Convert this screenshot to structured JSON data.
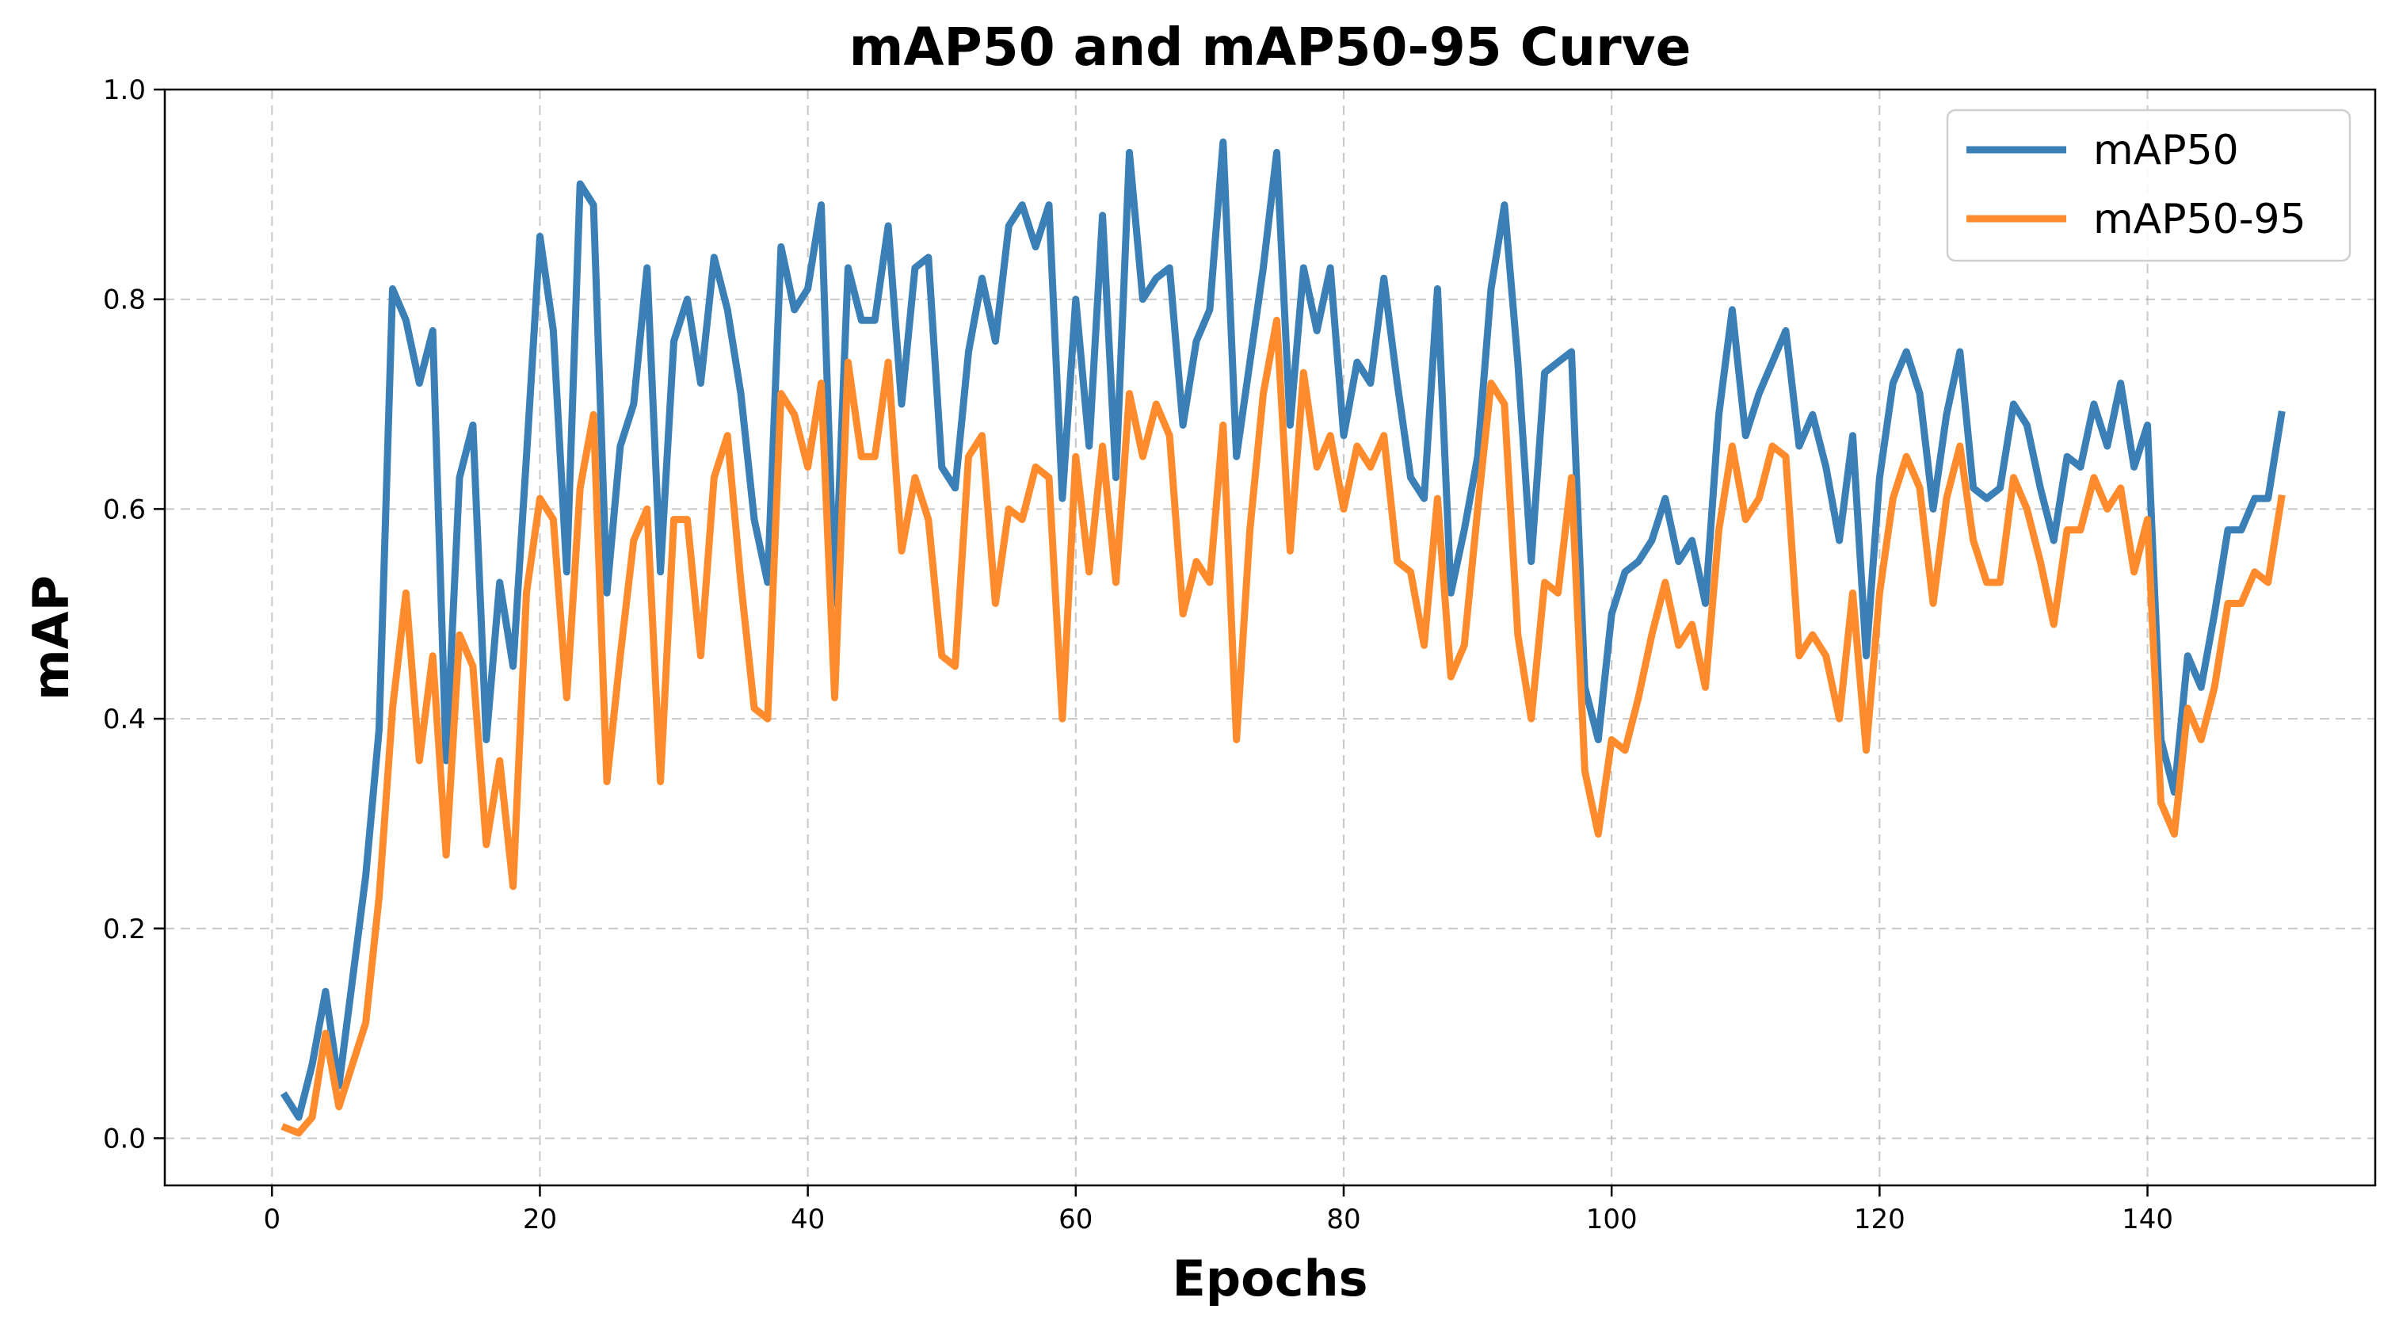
{
  "chart_data": {
    "type": "line",
    "title": "mAP50 and mAP50-95 Curve",
    "xlabel": "Epochs",
    "ylabel": "mAP",
    "xlim": [
      -8,
      157
    ],
    "ylim": [
      -0.045,
      1.0
    ],
    "xticks": [
      0,
      20,
      40,
      60,
      80,
      100,
      120,
      140
    ],
    "yticks": [
      0.0,
      0.2,
      0.4,
      0.6,
      0.8,
      1.0
    ],
    "grid": true,
    "legend_position": "top-right",
    "x": [
      1,
      2,
      3,
      4,
      5,
      6,
      7,
      8,
      9,
      10,
      11,
      12,
      13,
      14,
      15,
      16,
      17,
      18,
      19,
      20,
      21,
      22,
      23,
      24,
      25,
      26,
      27,
      28,
      29,
      30,
      31,
      32,
      33,
      34,
      35,
      36,
      37,
      38,
      39,
      40,
      41,
      42,
      43,
      44,
      45,
      46,
      47,
      48,
      49,
      50,
      51,
      52,
      53,
      54,
      55,
      56,
      57,
      58,
      59,
      60,
      61,
      62,
      63,
      64,
      65,
      66,
      67,
      68,
      69,
      70,
      71,
      72,
      73,
      74,
      75,
      76,
      77,
      78,
      79,
      80,
      81,
      82,
      83,
      84,
      85,
      86,
      87,
      88,
      89,
      90,
      91,
      92,
      93,
      94,
      95,
      96,
      97,
      98,
      99,
      100,
      101,
      102,
      103,
      104,
      105,
      106,
      107,
      108,
      109,
      110,
      111,
      112,
      113,
      114,
      115,
      116,
      117,
      118,
      119,
      120,
      121,
      122,
      123,
      124,
      125,
      126,
      127,
      128,
      129,
      130,
      131,
      132,
      133,
      134,
      135,
      136,
      137,
      138,
      139,
      140,
      141,
      142,
      143,
      144,
      145,
      146,
      147,
      148,
      149,
      150
    ],
    "series": [
      {
        "name": "mAP50",
        "color": "#3a7fb5",
        "values": [
          0.04,
          0.02,
          0.07,
          0.14,
          0.05,
          0.15,
          0.25,
          0.39,
          0.81,
          0.78,
          0.72,
          0.77,
          0.36,
          0.63,
          0.68,
          0.38,
          0.53,
          0.45,
          0.65,
          0.86,
          0.77,
          0.54,
          0.91,
          0.89,
          0.52,
          0.66,
          0.7,
          0.83,
          0.54,
          0.76,
          0.8,
          0.72,
          0.84,
          0.79,
          0.71,
          0.59,
          0.53,
          0.85,
          0.79,
          0.81,
          0.89,
          0.51,
          0.83,
          0.78,
          0.78,
          0.87,
          0.7,
          0.83,
          0.84,
          0.64,
          0.62,
          0.75,
          0.82,
          0.76,
          0.87,
          0.89,
          0.85,
          0.89,
          0.61,
          0.8,
          0.66,
          0.88,
          0.63,
          0.94,
          0.8,
          0.82,
          0.83,
          0.68,
          0.76,
          0.79,
          0.95,
          0.65,
          0.74,
          0.83,
          0.94,
          0.68,
          0.83,
          0.77,
          0.83,
          0.67,
          0.74,
          0.72,
          0.82,
          0.72,
          0.63,
          0.61,
          0.81,
          0.52,
          0.58,
          0.65,
          0.81,
          0.89,
          0.74,
          0.55,
          0.73,
          0.74,
          0.75,
          0.43,
          0.38,
          0.5,
          0.54,
          0.55,
          0.57,
          0.61,
          0.55,
          0.57,
          0.51,
          0.69,
          0.79,
          0.67,
          0.71,
          0.74,
          0.77,
          0.66,
          0.69,
          0.64,
          0.57,
          0.67,
          0.46,
          0.63,
          0.72,
          0.75,
          0.71,
          0.6,
          0.69,
          0.75,
          0.62,
          0.61,
          0.62,
          0.7,
          0.68,
          0.62,
          0.57,
          0.65,
          0.64,
          0.7,
          0.66,
          0.72,
          0.64,
          0.68,
          0.38,
          0.33,
          0.46,
          0.43,
          0.5,
          0.58,
          0.58,
          0.61,
          0.61,
          0.69
        ]
      },
      {
        "name": "mAP50-95",
        "color": "#ff8b2c",
        "values": [
          0.01,
          0.005,
          0.02,
          0.1,
          0.03,
          0.07,
          0.11,
          0.23,
          0.41,
          0.52,
          0.36,
          0.46,
          0.27,
          0.48,
          0.45,
          0.28,
          0.36,
          0.24,
          0.52,
          0.61,
          0.59,
          0.42,
          0.62,
          0.69,
          0.34,
          0.46,
          0.57,
          0.6,
          0.34,
          0.59,
          0.59,
          0.46,
          0.63,
          0.67,
          0.53,
          0.41,
          0.4,
          0.71,
          0.69,
          0.64,
          0.72,
          0.42,
          0.74,
          0.65,
          0.65,
          0.74,
          0.56,
          0.63,
          0.59,
          0.46,
          0.45,
          0.65,
          0.67,
          0.51,
          0.6,
          0.59,
          0.64,
          0.63,
          0.4,
          0.65,
          0.54,
          0.66,
          0.53,
          0.71,
          0.65,
          0.7,
          0.67,
          0.5,
          0.55,
          0.53,
          0.68,
          0.38,
          0.58,
          0.71,
          0.78,
          0.56,
          0.73,
          0.64,
          0.67,
          0.6,
          0.66,
          0.64,
          0.67,
          0.55,
          0.54,
          0.47,
          0.61,
          0.44,
          0.47,
          0.6,
          0.72,
          0.7,
          0.48,
          0.4,
          0.53,
          0.52,
          0.63,
          0.35,
          0.29,
          0.38,
          0.37,
          0.42,
          0.48,
          0.53,
          0.47,
          0.49,
          0.43,
          0.58,
          0.66,
          0.59,
          0.61,
          0.66,
          0.65,
          0.46,
          0.48,
          0.46,
          0.4,
          0.52,
          0.37,
          0.52,
          0.61,
          0.65,
          0.62,
          0.51,
          0.61,
          0.66,
          0.57,
          0.53,
          0.53,
          0.63,
          0.6,
          0.55,
          0.49,
          0.58,
          0.58,
          0.63,
          0.6,
          0.62,
          0.54,
          0.59,
          0.32,
          0.29,
          0.41,
          0.38,
          0.43,
          0.51,
          0.51,
          0.54,
          0.53,
          0.61
        ]
      }
    ]
  }
}
